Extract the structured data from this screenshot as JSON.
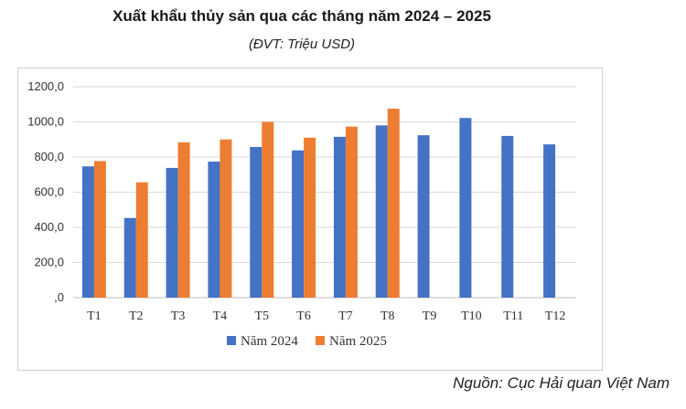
{
  "header": {
    "title": "Xuất khẩu thủy sản qua các tháng năm 2024 – 2025",
    "subtitle": "(ĐVT: Triệu USD)"
  },
  "footer": {
    "source": "Nguồn: Cục Hải quan Việt Nam"
  },
  "chart_data": {
    "type": "bar",
    "title": "Xuất khẩu thủy sản qua các tháng năm 2024 – 2025",
    "subtitle": "(ĐVT: Triệu USD)",
    "xlabel": "",
    "ylabel": "",
    "categories": [
      "T1",
      "T2",
      "T3",
      "T4",
      "T5",
      "T6",
      "T7",
      "T8",
      "T9",
      "T10",
      "T11",
      "T12"
    ],
    "series": [
      {
        "name": "Năm 2024",
        "color": "#4472C4",
        "values": [
          747,
          453,
          738,
          774,
          857,
          838,
          915,
          980,
          924,
          1022,
          920,
          872
        ]
      },
      {
        "name": "Năm 2025",
        "color": "#ED7D31",
        "values": [
          777,
          656,
          884,
          900,
          1000,
          910,
          973,
          1075,
          null,
          null,
          null,
          null
        ]
      }
    ],
    "ylim": [
      0,
      1200
    ],
    "yticks": [
      "0,0",
      "200,0",
      "400,0",
      "600,0",
      "800,0",
      "1000,0",
      "1200,0"
    ],
    "ytick_labels": [
      ",0",
      "200,0",
      "400,0",
      "600,0",
      "800,0",
      "1000,0",
      "1200,0"
    ],
    "grid": true,
    "legend_position": "bottom"
  }
}
